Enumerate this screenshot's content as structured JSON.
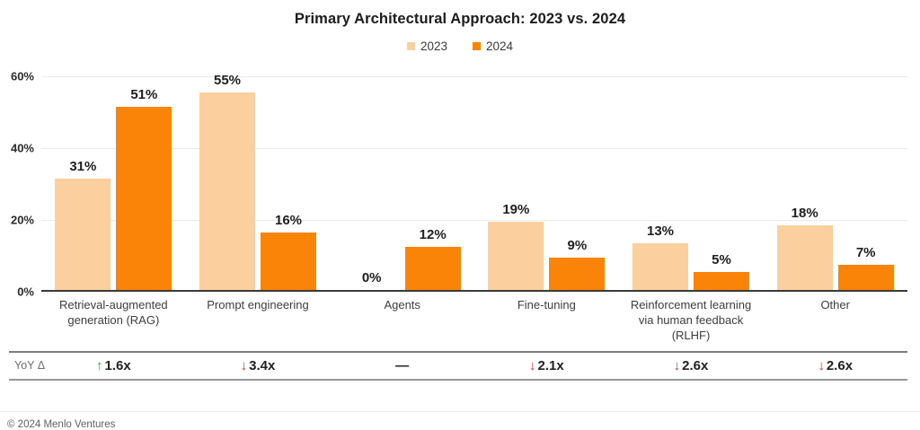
{
  "title": "Primary Architectural Approach: 2023 vs. 2024",
  "footer": {
    "copyright": "© 2024 Menlo Ventures"
  },
  "colors": {
    "bar_2023": "#FBCF9E",
    "bar_2024": "#FA8407",
    "up_arrow": "#2EA35C",
    "down_arrow": "#D92C2C",
    "grid": "#ececec",
    "baseline": "#3a3a3a"
  },
  "yoy": {
    "row_label": "YoY Δ",
    "cells": [
      {
        "direction": "up",
        "arrow": "↑",
        "text": "1.6x"
      },
      {
        "direction": "down",
        "arrow": "↓",
        "text": "3.4x"
      },
      {
        "direction": "none",
        "arrow": "",
        "text": "—"
      },
      {
        "direction": "down",
        "arrow": "↓",
        "text": "2.1x"
      },
      {
        "direction": "down",
        "arrow": "↓",
        "text": "2.6x"
      },
      {
        "direction": "down",
        "arrow": "↓",
        "text": "2.6x"
      }
    ]
  },
  "chart_data": {
    "type": "bar",
    "title": "Primary Architectural Approach: 2023 vs. 2024",
    "categories": [
      "Retrieval-augmented generation (RAG)",
      "Prompt engineering",
      "Agents",
      "Fine-tuning",
      "Reinforcement learning via human feedback (RLHF)",
      "Other"
    ],
    "series": [
      {
        "name": "2023",
        "color": "#FBCF9E",
        "values": [
          31,
          55,
          0,
          19,
          13,
          18
        ]
      },
      {
        "name": "2024",
        "color": "#FA8407",
        "values": [
          51,
          16,
          12,
          9,
          5,
          7
        ]
      }
    ],
    "value_label_suffix": "%",
    "xlabel": "",
    "ylabel": "",
    "ylim": [
      0,
      60
    ],
    "yticks": [
      0,
      20,
      40,
      60
    ],
    "ytick_labels": [
      "0%",
      "20%",
      "40%",
      "60%"
    ],
    "grid": true,
    "legend_position": "top-center"
  }
}
